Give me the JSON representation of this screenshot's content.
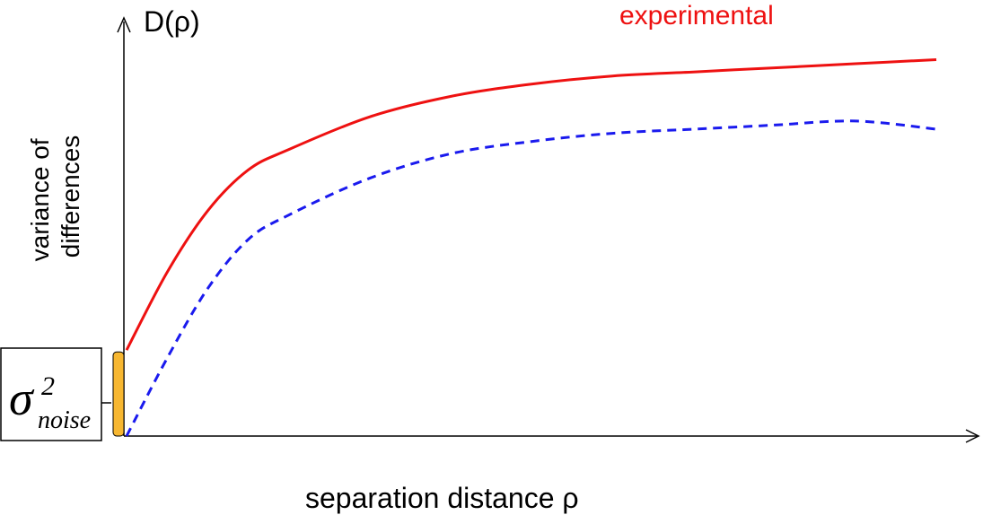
{
  "chart_data": {
    "type": "line",
    "title": "",
    "ylabel_top": "D(ρ)",
    "ylabel_side": [
      "variance of",
      "differences"
    ],
    "xlabel": "separation distance ρ",
    "grid": false,
    "xlim": [
      0,
      1
    ],
    "ylim": [
      0,
      1
    ],
    "nugget": 0.21,
    "nugget_label": {
      "symbol": "σ",
      "superscript": "2",
      "subscript": "noise"
    },
    "series": [
      {
        "name": "experimental",
        "color": "#ee1111",
        "style": "solid",
        "x": [
          0.0,
          0.05,
          0.1,
          0.15,
          0.2,
          0.3,
          0.4,
          0.5,
          0.6,
          0.7,
          0.8,
          0.9,
          1.0
        ],
        "y": [
          0.21,
          0.4,
          0.55,
          0.65,
          0.7,
          0.78,
          0.83,
          0.86,
          0.88,
          0.89,
          0.9,
          0.91,
          0.92
        ]
      },
      {
        "name": "",
        "color": "#1a1aee",
        "style": "dashed",
        "x": [
          0.0,
          0.05,
          0.1,
          0.15,
          0.2,
          0.3,
          0.4,
          0.5,
          0.6,
          0.7,
          0.8,
          0.9,
          1.0
        ],
        "y": [
          0.0,
          0.19,
          0.36,
          0.48,
          0.54,
          0.63,
          0.69,
          0.72,
          0.74,
          0.75,
          0.76,
          0.77,
          0.75
        ]
      }
    ],
    "colors": {
      "axis": "#000000",
      "nugget_bar": "#f7b731",
      "label_box": "#000000"
    }
  }
}
